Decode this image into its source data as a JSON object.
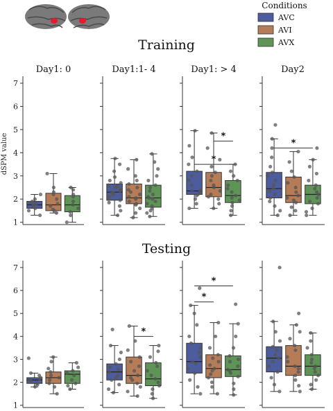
{
  "figure": {
    "legend": {
      "title": "Conditions",
      "entries": [
        {
          "label": "AVC",
          "color": "#4c5c9c"
        },
        {
          "label": "AVI",
          "color": "#b67c57"
        },
        {
          "label": "AVX",
          "color": "#5e9557"
        }
      ]
    },
    "brain_icon": "brain-lateral-views-icon",
    "highlight_color": "#e8192c"
  },
  "chart_data": [
    {
      "type": "box",
      "title": "Training",
      "ylabel": "dSPM value",
      "ylim": [
        0.9,
        7.3
      ],
      "yticks": [
        1,
        2,
        3,
        4,
        5,
        6,
        7
      ],
      "panels": [
        {
          "label": "Day1: 0",
          "boxes": [
            {
              "series": "AVC",
              "whislo": 1.3,
              "q1": 1.6,
              "med": 1.75,
              "q3": 1.9,
              "whishi": 2.2,
              "points": [
                1.3,
                1.5,
                1.6,
                1.7,
                1.75,
                1.8,
                1.85,
                1.9,
                2.0,
                2.2
              ]
            },
            {
              "series": "AVI",
              "whislo": 1.4,
              "q1": 1.5,
              "med": 1.75,
              "q3": 2.25,
              "whishi": 3.1,
              "points": [
                1.4,
                1.5,
                1.55,
                1.7,
                1.8,
                2.0,
                2.2,
                2.3,
                2.5,
                3.1
              ]
            },
            {
              "series": "AVX",
              "whislo": 1.0,
              "q1": 1.45,
              "med": 1.75,
              "q3": 2.15,
              "whishi": 2.5,
              "points": [
                1.0,
                1.3,
                1.45,
                1.6,
                1.75,
                1.9,
                2.1,
                2.2,
                2.4,
                2.5
              ]
            }
          ],
          "sig": []
        },
        {
          "label": "Day1:1- 4",
          "boxes": [
            {
              "series": "AVC",
              "whislo": 1.3,
              "q1": 1.95,
              "med": 2.3,
              "q3": 2.65,
              "whishi": 3.75,
              "points": [
                1.3,
                1.5,
                1.7,
                1.85,
                1.95,
                2.0,
                2.1,
                2.2,
                2.25,
                2.3,
                2.35,
                2.4,
                2.5,
                2.55,
                2.6,
                2.7,
                2.8,
                2.95,
                3.2,
                3.5,
                3.75
              ]
            },
            {
              "series": "AVI",
              "whislo": 1.2,
              "q1": 1.8,
              "med": 2.05,
              "q3": 2.65,
              "whishi": 3.7,
              "points": [
                1.2,
                1.4,
                1.6,
                1.75,
                1.8,
                1.9,
                2.0,
                2.05,
                2.1,
                2.2,
                2.3,
                2.4,
                2.5,
                2.65,
                2.8,
                3.0,
                3.3,
                3.7
              ]
            },
            {
              "series": "AVX",
              "whislo": 1.25,
              "q1": 1.65,
              "med": 2.05,
              "q3": 2.6,
              "whishi": 3.95,
              "points": [
                1.25,
                1.4,
                1.5,
                1.6,
                1.7,
                1.8,
                1.9,
                2.0,
                2.05,
                2.1,
                2.2,
                2.35,
                2.5,
                2.6,
                2.8,
                3.0,
                3.3,
                3.6,
                3.95
              ]
            }
          ],
          "sig": []
        },
        {
          "label": "Day1: > 4",
          "boxes": [
            {
              "series": "AVC",
              "whislo": 1.6,
              "q1": 2.2,
              "med": 2.35,
              "q3": 3.2,
              "whishi": 4.95,
              "points": [
                1.6,
                1.8,
                2.0,
                2.15,
                2.2,
                2.3,
                2.35,
                2.4,
                2.6,
                2.8,
                3.0,
                3.2,
                3.5,
                3.8,
                4.3,
                4.95
              ]
            },
            {
              "series": "AVI",
              "whislo": 1.6,
              "q1": 2.1,
              "med": 2.5,
              "q3": 3.15,
              "whishi": 4.85,
              "points": [
                1.6,
                1.8,
                2.0,
                2.1,
                2.2,
                2.35,
                2.5,
                2.6,
                2.8,
                3.0,
                3.15,
                3.4,
                3.7,
                4.2,
                4.85
              ]
            },
            {
              "series": "AVX",
              "whislo": 1.3,
              "q1": 1.85,
              "med": 2.15,
              "q3": 2.8,
              "whishi": 3.5,
              "points": [
                1.3,
                1.5,
                1.7,
                1.85,
                1.95,
                2.05,
                2.15,
                2.3,
                2.45,
                2.6,
                2.8,
                3.0,
                3.2,
                3.5
              ]
            }
          ],
          "sig": [
            {
              "from": 0,
              "to": 2,
              "y": 3.5,
              "label": "*"
            },
            {
              "from": 1,
              "to": 2,
              "y": 4.5,
              "label": "*"
            }
          ]
        },
        {
          "label": "Day2",
          "boxes": [
            {
              "series": "AVC",
              "whislo": 1.3,
              "q1": 2.05,
              "med": 2.45,
              "q3": 3.15,
              "whishi": 4.6,
              "points": [
                1.3,
                1.5,
                1.7,
                1.9,
                2.05,
                2.2,
                2.35,
                2.45,
                2.6,
                2.8,
                3.0,
                3.15,
                3.4,
                3.8,
                4.2,
                4.6,
                5.2
              ]
            },
            {
              "series": "AVI",
              "whislo": 1.3,
              "q1": 1.85,
              "med": 2.15,
              "q3": 2.95,
              "whishi": 4.05,
              "points": [
                1.3,
                1.5,
                1.65,
                1.85,
                1.95,
                2.05,
                2.15,
                2.3,
                2.5,
                2.7,
                2.95,
                3.2,
                3.6,
                4.05
              ]
            },
            {
              "series": "AVX",
              "whislo": 1.3,
              "q1": 1.8,
              "med": 2.2,
              "q3": 2.6,
              "whishi": 3.7,
              "points": [
                1.3,
                1.45,
                1.6,
                1.8,
                1.9,
                2.05,
                2.2,
                2.3,
                2.45,
                2.6,
                2.8,
                3.1,
                3.4,
                3.7,
                4.2
              ]
            }
          ],
          "sig": [
            {
              "from": 0,
              "to": 2,
              "y": 4.2,
              "label": "*"
            }
          ]
        }
      ]
    },
    {
      "type": "box",
      "title": "Testing",
      "ylabel": "",
      "ylim": [
        0.9,
        7.3
      ],
      "yticks": [
        1,
        2,
        3,
        4,
        5,
        6,
        7
      ],
      "panels": [
        {
          "label": "",
          "boxes": [
            {
              "series": "AVC",
              "whislo": 1.8,
              "q1": 1.95,
              "med": 2.1,
              "q3": 2.2,
              "whishi": 2.4,
              "points": [
                1.8,
                1.9,
                1.95,
                2.05,
                2.1,
                2.15,
                2.2,
                2.3,
                2.4,
                3.05
              ]
            },
            {
              "series": "AVI",
              "whislo": 1.5,
              "q1": 1.95,
              "med": 2.2,
              "q3": 2.45,
              "whishi": 3.1,
              "points": [
                1.5,
                1.8,
                1.95,
                2.1,
                2.2,
                2.3,
                2.45,
                2.6,
                2.9,
                3.1
              ]
            },
            {
              "series": "AVX",
              "whislo": 1.7,
              "q1": 1.95,
              "med": 2.35,
              "q3": 2.5,
              "whishi": 2.85,
              "points": [
                1.7,
                1.85,
                1.95,
                2.1,
                2.3,
                2.4,
                2.5,
                2.65,
                2.85
              ]
            }
          ],
          "sig": []
        },
        {
          "label": "",
          "boxes": [
            {
              "series": "AVC",
              "whislo": 1.55,
              "q1": 2.1,
              "med": 2.45,
              "q3": 2.8,
              "whishi": 3.6,
              "points": [
                1.55,
                1.7,
                1.9,
                2.1,
                2.2,
                2.3,
                2.45,
                2.55,
                2.65,
                2.8,
                3.0,
                3.3,
                3.6,
                4.3
              ]
            },
            {
              "series": "AVI",
              "whislo": 1.4,
              "q1": 1.95,
              "med": 2.3,
              "q3": 3.1,
              "whishi": 4.45,
              "points": [
                1.4,
                1.6,
                1.8,
                1.95,
                2.1,
                2.2,
                2.3,
                2.5,
                2.7,
                2.9,
                3.1,
                3.4,
                3.8,
                4.45
              ]
            },
            {
              "series": "AVX",
              "whislo": 1.3,
              "q1": 1.85,
              "med": 2.15,
              "q3": 2.85,
              "whishi": 3.6,
              "points": [
                1.3,
                1.5,
                1.7,
                1.85,
                2.0,
                2.15,
                2.3,
                2.5,
                2.7,
                2.85,
                3.1,
                3.35,
                3.6
              ]
            }
          ],
          "sig": [
            {
              "from": 1,
              "to": 2,
              "y": 4.0,
              "label": "*"
            }
          ]
        },
        {
          "label": "",
          "boxes": [
            {
              "series": "AVC",
              "whislo": 1.5,
              "q1": 2.4,
              "med": 2.9,
              "q3": 3.7,
              "whishi": 5.35,
              "points": [
                1.5,
                1.8,
                2.1,
                2.4,
                2.6,
                2.8,
                2.9,
                3.1,
                3.3,
                3.5,
                3.7,
                4.0,
                4.5,
                5.0,
                5.35,
                6.1
              ]
            },
            {
              "series": "AVI",
              "whislo": 1.5,
              "q1": 2.2,
              "med": 2.6,
              "q3": 3.2,
              "whishi": 4.6,
              "points": [
                1.5,
                1.8,
                2.0,
                2.2,
                2.35,
                2.5,
                2.6,
                2.75,
                2.9,
                3.05,
                3.2,
                3.5,
                4.0,
                4.6
              ]
            },
            {
              "series": "AVX",
              "whislo": 1.45,
              "q1": 2.25,
              "med": 2.55,
              "q3": 3.15,
              "whishi": 4.55,
              "points": [
                1.45,
                1.7,
                1.95,
                2.25,
                2.4,
                2.5,
                2.55,
                2.7,
                2.9,
                3.0,
                3.15,
                3.5,
                4.0,
                4.55,
                5.4
              ]
            }
          ],
          "sig": [
            {
              "from": 0,
              "to": 1,
              "y": 5.5,
              "label": "*"
            },
            {
              "from": 0,
              "to": 2,
              "y": 6.2,
              "label": "*"
            }
          ]
        },
        {
          "label": "",
          "boxes": [
            {
              "series": "AVC",
              "whislo": 1.6,
              "q1": 2.45,
              "med": 3.05,
              "q3": 3.55,
              "whishi": 4.65,
              "points": [
                1.6,
                1.9,
                2.2,
                2.45,
                2.7,
                2.9,
                3.05,
                3.2,
                3.4,
                3.55,
                3.8,
                4.2,
                4.65,
                7.0
              ]
            },
            {
              "series": "AVI",
              "whislo": 1.6,
              "q1": 2.3,
              "med": 2.7,
              "q3": 3.6,
              "whishi": 4.5,
              "points": [
                1.6,
                1.85,
                2.1,
                2.3,
                2.45,
                2.6,
                2.7,
                2.9,
                3.1,
                3.4,
                3.6,
                3.9,
                4.2,
                4.5,
                5.0
              ]
            },
            {
              "series": "AVX",
              "whislo": 1.7,
              "q1": 2.3,
              "med": 2.7,
              "q3": 3.2,
              "whishi": 4.15,
              "points": [
                1.7,
                1.9,
                2.1,
                2.3,
                2.45,
                2.6,
                2.7,
                2.85,
                3.0,
                3.2,
                3.5,
                3.8,
                4.15
              ]
            }
          ],
          "sig": []
        }
      ]
    }
  ]
}
